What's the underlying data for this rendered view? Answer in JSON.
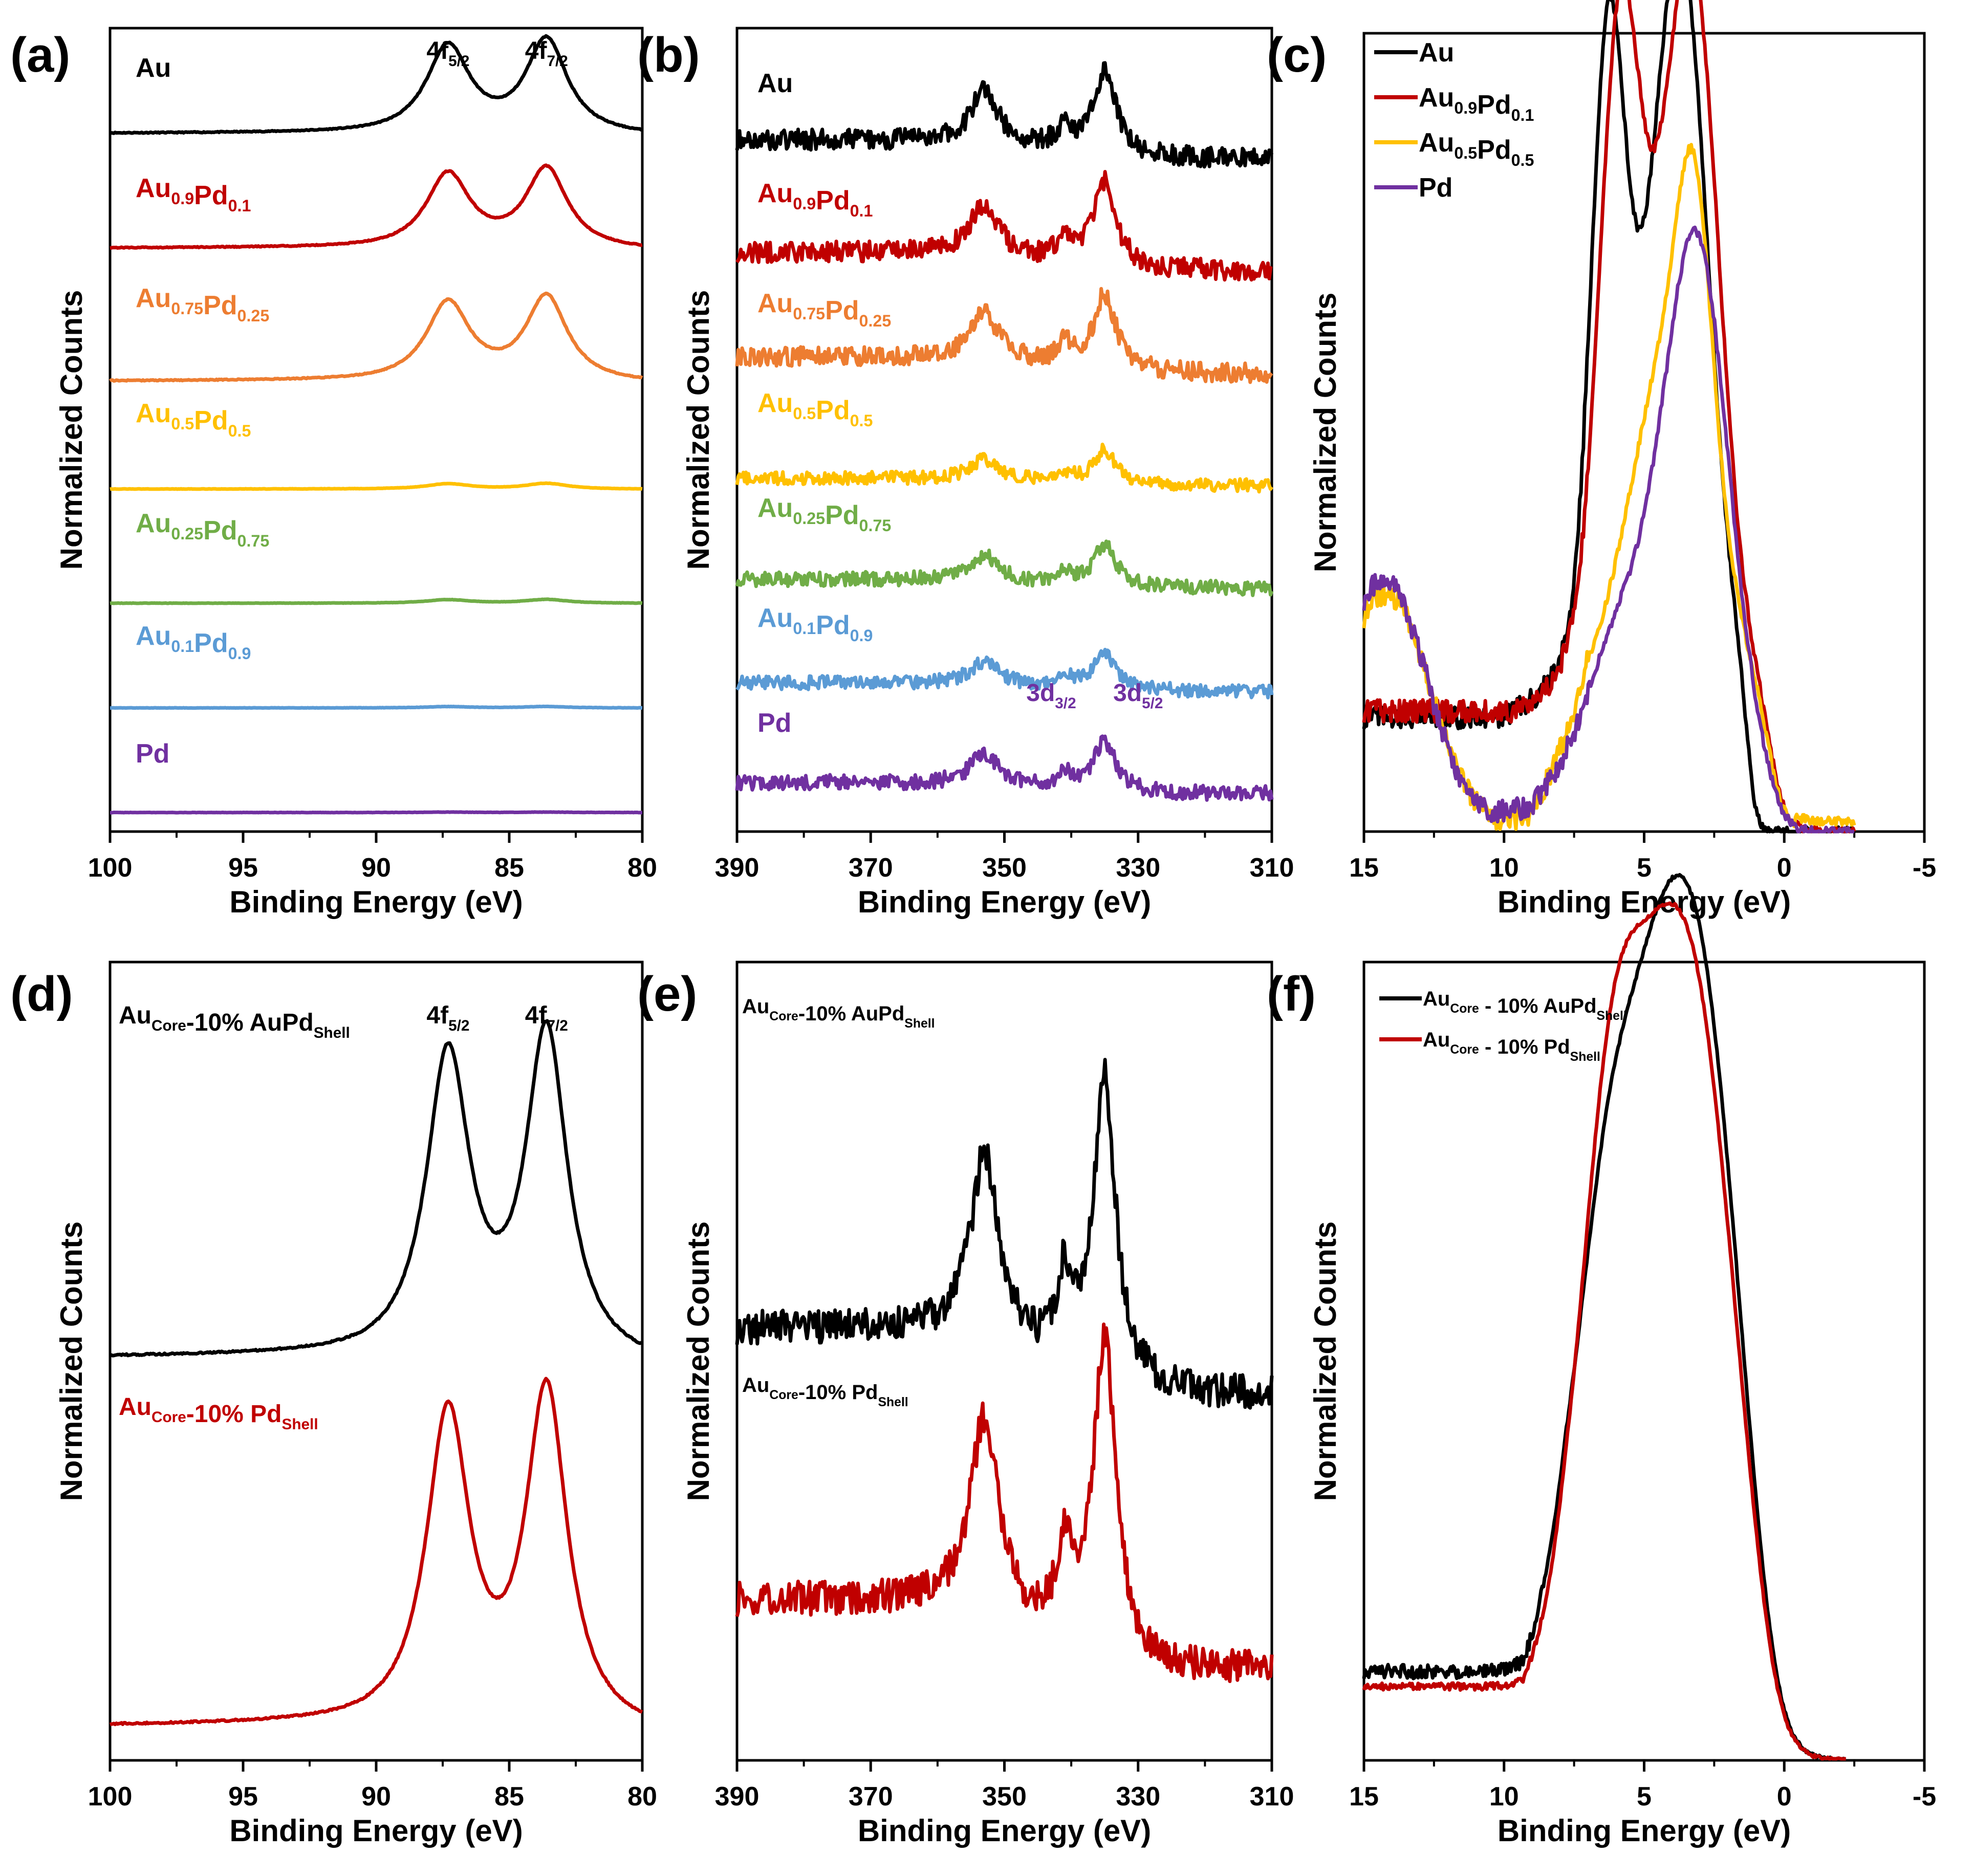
{
  "colors": {
    "Au": "#000000",
    "Au0.9Pd0.1": "#c00000",
    "Au0.75Pd0.25": "#ed7d31",
    "Au0.5Pd0.5": "#ffc000",
    "Au0.25Pd0.75": "#70ad47",
    "Au0.1Pd0.9": "#5b9bd5",
    "Pd": "#7030a0",
    "core_aupd": "#000000",
    "core_pd": "#c00000"
  },
  "chart_data": [
    {
      "id": "a",
      "letter": "(a)",
      "type": "line",
      "xlabel": "Binding Energy (eV)",
      "ylabel": "Normalized Counts",
      "xlim": [
        100,
        80
      ],
      "xticks": [
        "100",
        "95",
        "90",
        "85",
        "80"
      ],
      "xtick_values": [
        100,
        95,
        90,
        85,
        80
      ],
      "peaks_label": [
        {
          "pre": "4f",
          "sub": "5/2",
          "x": 87.3
        },
        {
          "pre": "4f",
          "sub": "7/2",
          "x": 83.6
        }
      ],
      "series": [
        {
          "key": "Au",
          "label": "Au",
          "sub1": "",
          "mid": "",
          "sub2": "",
          "offset": 7.3,
          "amp": 1.0,
          "shape": "au4f"
        },
        {
          "key": "Au0.9Pd0.1",
          "label": "Au",
          "sub1": "0.9",
          "mid": "Pd",
          "sub2": "0.1",
          "offset": 6.1,
          "amp": 0.85,
          "shape": "au4f"
        },
        {
          "key": "Au0.75Pd0.25",
          "label": "Au",
          "sub1": "0.75",
          "mid": "Pd",
          "sub2": "0.25",
          "offset": 4.7,
          "amp": 0.9,
          "shape": "au4f"
        },
        {
          "key": "Au0.5Pd0.5",
          "label": "Au",
          "sub1": "0.5",
          "mid": "Pd",
          "sub2": "0.5",
          "offset": 3.6,
          "amp": 0.06,
          "shape": "au4f"
        },
        {
          "key": "Au0.25Pd0.75",
          "label": "Au",
          "sub1": "0.25",
          "mid": "Pd",
          "sub2": "0.75",
          "offset": 2.4,
          "amp": 0.04,
          "shape": "au4f"
        },
        {
          "key": "Au0.1Pd0.9",
          "label": "Au",
          "sub1": "0.1",
          "mid": "Pd",
          "sub2": "0.9",
          "offset": 1.3,
          "amp": 0.015,
          "shape": "au4f"
        },
        {
          "key": "Pd",
          "label": "Pd",
          "sub1": "",
          "mid": "",
          "sub2": "",
          "offset": 0.2,
          "amp": 0.005,
          "shape": "au4f"
        }
      ]
    },
    {
      "id": "b",
      "letter": "(b)",
      "type": "line",
      "xlabel": "Binding Energy (eV)",
      "ylabel": "Normalized Counts",
      "xlim": [
        390,
        310
      ],
      "xticks": [
        "390",
        "370",
        "350",
        "330",
        "310"
      ],
      "xtick_values": [
        390,
        370,
        350,
        330,
        310
      ],
      "peaks_label": [
        {
          "pre": "3d",
          "sub": "3/2",
          "x": 343
        },
        {
          "pre": "3d",
          "sub": "5/2",
          "x": 330
        }
      ],
      "series": [
        {
          "key": "Au",
          "label": "Au",
          "sub1": "",
          "mid": "",
          "sub2": "",
          "offset": 7.2,
          "amp": 1.0,
          "shape": "pd3d"
        },
        {
          "key": "Au0.9Pd0.1",
          "label": "Au",
          "sub1": "0.9",
          "mid": "Pd",
          "sub2": "0.1",
          "offset": 6.0,
          "amp": 1.0,
          "shape": "pd3d"
        },
        {
          "key": "Au0.75Pd0.25",
          "label": "Au",
          "sub1": "0.75",
          "mid": "Pd",
          "sub2": "0.25",
          "offset": 4.9,
          "amp": 0.9,
          "shape": "pd3d"
        },
        {
          "key": "Au0.5Pd0.5",
          "label": "Au",
          "sub1": "0.5",
          "mid": "Pd",
          "sub2": "0.5",
          "offset": 3.7,
          "amp": 0.4,
          "shape": "pd3d"
        },
        {
          "key": "Au0.25Pd0.75",
          "label": "Au",
          "sub1": "0.25",
          "mid": "Pd",
          "sub2": "0.75",
          "offset": 2.6,
          "amp": 0.5,
          "shape": "pd3d"
        },
        {
          "key": "Au0.1Pd0.9",
          "label": "Au",
          "sub1": "0.1",
          "mid": "Pd",
          "sub2": "0.9",
          "offset": 1.5,
          "amp": 0.45,
          "shape": "pd3d"
        },
        {
          "key": "Pd",
          "label": "Pd",
          "sub1": "",
          "mid": "",
          "sub2": "",
          "offset": 0.4,
          "amp": 0.6,
          "shape": "pd3d"
        }
      ]
    },
    {
      "id": "c",
      "letter": "(c)",
      "type": "line",
      "xlabel": "Binding Energy (eV)",
      "ylabel": "Normalized Counts",
      "xlim": [
        15,
        -5
      ],
      "xticks": [
        "15",
        "10",
        "5",
        "0",
        "-5"
      ],
      "xtick_values": [
        15,
        10,
        5,
        0,
        -5
      ],
      "legend": [
        {
          "key": "Au",
          "label": "Au",
          "sub1": "",
          "mid": "",
          "sub2": ""
        },
        {
          "key": "Au0.9Pd0.1",
          "label": "Au",
          "sub1": "0.9",
          "mid": "Pd",
          "sub2": "0.1"
        },
        {
          "key": "Au0.5Pd0.5",
          "label": "Au",
          "sub1": "0.5",
          "mid": "Pd",
          "sub2": "0.5"
        },
        {
          "key": "Pd",
          "label": "Pd",
          "sub1": "",
          "mid": "",
          "sub2": ""
        }
      ],
      "series": [
        {
          "key": "Au",
          "shape": "vb_au"
        },
        {
          "key": "Au0.9Pd0.1",
          "shape": "vb_au9"
        },
        {
          "key": "Au0.5Pd0.5",
          "shape": "vb_au5"
        },
        {
          "key": "Pd",
          "shape": "vb_pd"
        }
      ]
    },
    {
      "id": "d",
      "letter": "(d)",
      "type": "line",
      "xlabel": "Binding Energy (eV)",
      "ylabel": "Normalized Counts",
      "xlim": [
        100,
        80
      ],
      "xticks": [
        "100",
        "95",
        "90",
        "85",
        "80"
      ],
      "xtick_values": [
        100,
        95,
        90,
        85,
        80
      ],
      "peaks_label": [
        {
          "pre": "4f",
          "sub": "5/2",
          "x": 87.3
        },
        {
          "pre": "4f",
          "sub": "7/2",
          "x": 83.6
        }
      ],
      "series": [
        {
          "key": "core_aupd",
          "label": "Au",
          "sub1": "Core",
          "mid": "-10% AuPd",
          "sub2": "Shell",
          "offset": 3.9,
          "amp": 3.3,
          "shape": "au4f"
        },
        {
          "key": "core_pd",
          "label": "Au",
          "sub1": "Core",
          "mid": "-10% Pd",
          "sub2": "Shell",
          "offset": 0.2,
          "amp": 3.4,
          "shape": "au4f"
        }
      ]
    },
    {
      "id": "e",
      "letter": "(e)",
      "type": "line",
      "xlabel": "Binding Energy (eV)",
      "ylabel": "Normalized Counts",
      "xlim": [
        390,
        310
      ],
      "xticks": [
        "390",
        "370",
        "350",
        "330",
        "310"
      ],
      "xtick_values": [
        390,
        370,
        350,
        330,
        310
      ],
      "series": [
        {
          "key": "core_aupd",
          "label": "Au",
          "sub1": "Core",
          "mid": "-10% AuPd",
          "sub2": "Shell",
          "offset": 3.7,
          "amp": 3.4,
          "shape": "pd3d"
        },
        {
          "key": "core_pd",
          "label": "Au",
          "sub1": "Core",
          "mid": "-10% Pd",
          "sub2": "Shell",
          "offset": 0.9,
          "amp": 3.6,
          "shape": "pd3d"
        }
      ]
    },
    {
      "id": "f",
      "letter": "(f)",
      "type": "line",
      "xlabel": "Binding Energy (eV)",
      "ylabel": "Normalized Counts",
      "xlim": [
        15,
        -5
      ],
      "xticks": [
        "15",
        "10",
        "5",
        "0",
        "-5"
      ],
      "xtick_values": [
        15,
        10,
        5,
        0,
        -5
      ],
      "legend": [
        {
          "key": "core_aupd",
          "label": "Au",
          "sub1": "Core",
          "mid": " - 10% AuPd",
          "sub2": "Shell"
        },
        {
          "key": "core_pd",
          "label": "Au",
          "sub1": "Core",
          "mid": " - 10% Pd",
          "sub2": "Shell"
        }
      ],
      "series": [
        {
          "key": "core_aupd",
          "shape": "vb_core1"
        },
        {
          "key": "core_pd",
          "shape": "vb_core2"
        }
      ]
    }
  ]
}
